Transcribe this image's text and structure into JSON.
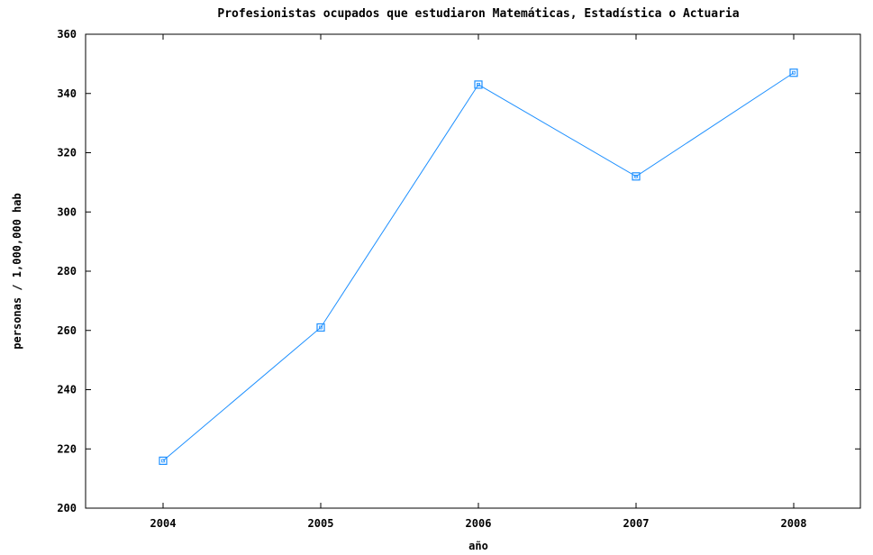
{
  "chart_data": {
    "type": "line",
    "title": "Profesionistas ocupados que estudiaron Matemáticas, Estadística o Actuaria",
    "xlabel": "año",
    "ylabel": "personas / 1,000,000 hab",
    "categories": [
      "2004",
      "2005",
      "2006",
      "2007",
      "2008"
    ],
    "series": [
      {
        "values": [
          216,
          261,
          343,
          312,
          347
        ]
      }
    ],
    "ylim": [
      200,
      360
    ],
    "yticks": [
      200,
      220,
      240,
      260,
      280,
      300,
      320,
      340,
      360
    ],
    "grid": false,
    "line_color": "#1e90ff",
    "marker": "open-square"
  }
}
